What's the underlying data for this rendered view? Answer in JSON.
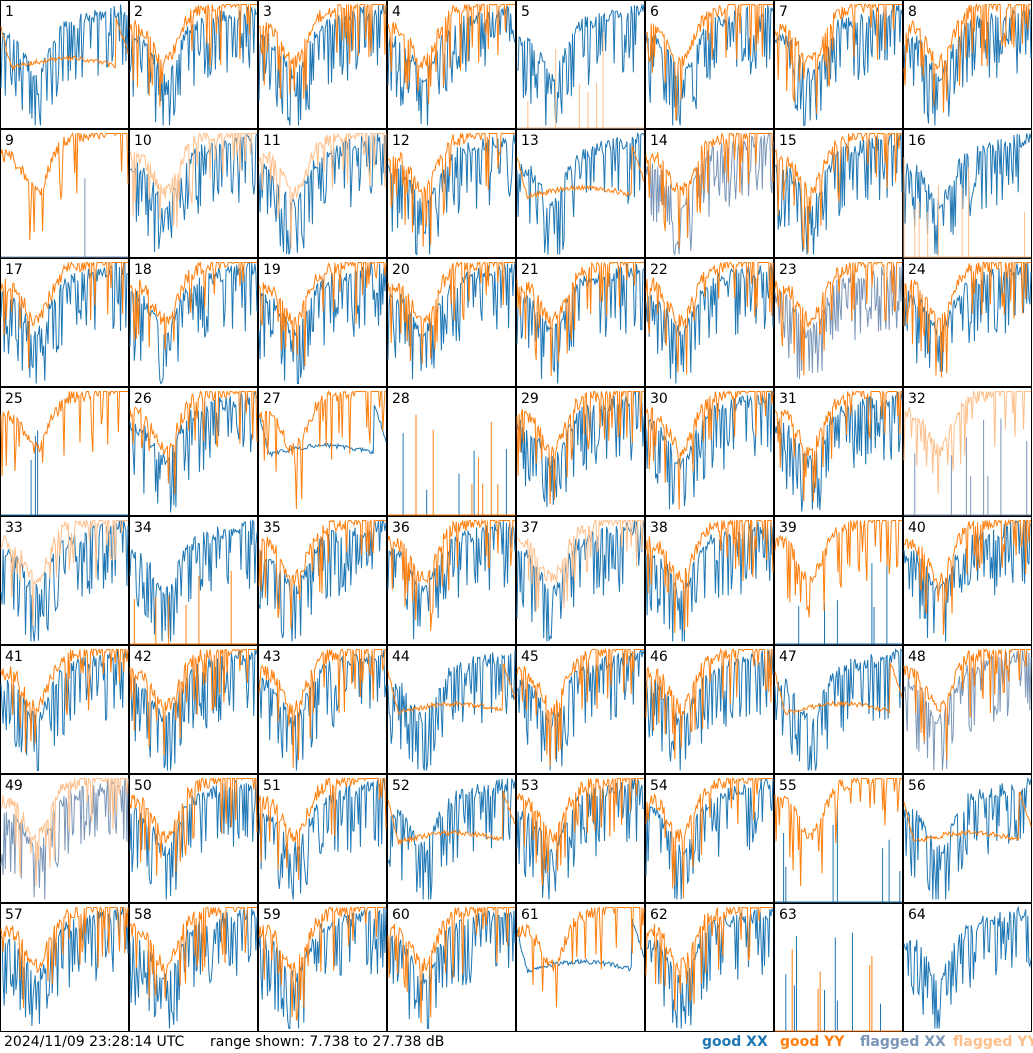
{
  "footer": {
    "timestamp": "2024/11/09 23:28:14 UTC",
    "range": "range shown: 7.738 to 27.738 dB"
  },
  "legend": [
    {
      "word": "good",
      "pol": "XX",
      "color": "#1f77b4"
    },
    {
      "word": "good",
      "pol": "YY",
      "color": "#ff7f0e"
    },
    {
      "word": "flagged",
      "pol": "XX",
      "color": "#7a96b8"
    },
    {
      "word": "flagged",
      "pol": "YY",
      "color": "#ffbf8a"
    }
  ],
  "chart_data": {
    "type": "line",
    "title": "",
    "ylim": [
      7.738,
      27.738
    ],
    "y_unit": "dB",
    "grid_layout": "8 x 8",
    "panels": [
      {
        "label": "1",
        "XX": "good",
        "YY": "good",
        "yy_style": "flat"
      },
      {
        "label": "2",
        "XX": "good",
        "YY": "good"
      },
      {
        "label": "3",
        "XX": "good",
        "YY": "good"
      },
      {
        "label": "4",
        "XX": "good",
        "YY": "good"
      },
      {
        "label": "5",
        "XX": "good",
        "YY": "flagged",
        "yy_style": "dead"
      },
      {
        "label": "6",
        "XX": "good",
        "YY": "good"
      },
      {
        "label": "7",
        "XX": "good",
        "YY": "good"
      },
      {
        "label": "8",
        "XX": "good",
        "YY": "good"
      },
      {
        "label": "9",
        "XX": "flagged",
        "YY": "good",
        "xx_style": "dead"
      },
      {
        "label": "10",
        "XX": "good",
        "YY": "flagged"
      },
      {
        "label": "11",
        "XX": "good",
        "YY": "flagged"
      },
      {
        "label": "12",
        "XX": "good",
        "YY": "good"
      },
      {
        "label": "13",
        "XX": "good",
        "YY": "good",
        "yy_style": "flat"
      },
      {
        "label": "14",
        "XX": "flagged",
        "YY": "good"
      },
      {
        "label": "15",
        "XX": "good",
        "YY": "good"
      },
      {
        "label": "16",
        "XX": "good",
        "YY": "flagged",
        "yy_style": "dead"
      },
      {
        "label": "17",
        "XX": "good",
        "YY": "good"
      },
      {
        "label": "18",
        "XX": "good",
        "YY": "good"
      },
      {
        "label": "19",
        "XX": "good",
        "YY": "good"
      },
      {
        "label": "20",
        "XX": "good",
        "YY": "good"
      },
      {
        "label": "21",
        "XX": "good",
        "YY": "good"
      },
      {
        "label": "22",
        "XX": "good",
        "YY": "good"
      },
      {
        "label": "23",
        "XX": "flagged",
        "YY": "good"
      },
      {
        "label": "24",
        "XX": "good",
        "YY": "good"
      },
      {
        "label": "25",
        "XX": "good",
        "YY": "good",
        "xx_style": "dead"
      },
      {
        "label": "26",
        "XX": "good",
        "YY": "good"
      },
      {
        "label": "27",
        "XX": "good",
        "YY": "good",
        "xx_style": "flat"
      },
      {
        "label": "28",
        "XX": "good",
        "YY": "good",
        "xx_style": "dead",
        "yy_style": "dead"
      },
      {
        "label": "29",
        "XX": "good",
        "YY": "good"
      },
      {
        "label": "30",
        "XX": "good",
        "YY": "good"
      },
      {
        "label": "31",
        "XX": "good",
        "YY": "good"
      },
      {
        "label": "32",
        "XX": "flagged",
        "YY": "flagged",
        "xx_style": "dead"
      },
      {
        "label": "33",
        "XX": "good",
        "YY": "flagged"
      },
      {
        "label": "34",
        "XX": "good",
        "YY": "good",
        "yy_style": "dead"
      },
      {
        "label": "35",
        "XX": "good",
        "YY": "good"
      },
      {
        "label": "36",
        "XX": "good",
        "YY": "good"
      },
      {
        "label": "37",
        "XX": "good",
        "YY": "flagged"
      },
      {
        "label": "38",
        "XX": "good",
        "YY": "good"
      },
      {
        "label": "39",
        "XX": "good",
        "YY": "good",
        "xx_style": "dead"
      },
      {
        "label": "40",
        "XX": "good",
        "YY": "good"
      },
      {
        "label": "41",
        "XX": "good",
        "YY": "good"
      },
      {
        "label": "42",
        "XX": "good",
        "YY": "good"
      },
      {
        "label": "43",
        "XX": "good",
        "YY": "good"
      },
      {
        "label": "44",
        "XX": "good",
        "YY": "good",
        "yy_style": "flat"
      },
      {
        "label": "45",
        "XX": "good",
        "YY": "good"
      },
      {
        "label": "46",
        "XX": "good",
        "YY": "good"
      },
      {
        "label": "47",
        "XX": "good",
        "YY": "good",
        "yy_style": "flat"
      },
      {
        "label": "48",
        "XX": "flagged",
        "YY": "good"
      },
      {
        "label": "49",
        "XX": "flagged",
        "YY": "flagged"
      },
      {
        "label": "50",
        "XX": "good",
        "YY": "good"
      },
      {
        "label": "51",
        "XX": "good",
        "YY": "good"
      },
      {
        "label": "52",
        "XX": "good",
        "YY": "good",
        "yy_style": "flat"
      },
      {
        "label": "53",
        "XX": "good",
        "YY": "good"
      },
      {
        "label": "54",
        "XX": "good",
        "YY": "good"
      },
      {
        "label": "55",
        "XX": "good",
        "YY": "good",
        "xx_style": "dead"
      },
      {
        "label": "56",
        "XX": "good",
        "YY": "good",
        "yy_style": "flat"
      },
      {
        "label": "57",
        "XX": "good",
        "YY": "good"
      },
      {
        "label": "58",
        "XX": "good",
        "YY": "good"
      },
      {
        "label": "59",
        "XX": "good",
        "YY": "good"
      },
      {
        "label": "60",
        "XX": "good",
        "YY": "good"
      },
      {
        "label": "61",
        "XX": "good",
        "YY": "good",
        "xx_style": "flat"
      },
      {
        "label": "62",
        "XX": "good",
        "YY": "good"
      },
      {
        "label": "63",
        "XX": "good",
        "YY": "good",
        "xx_style": "dead",
        "yy_style": "dead"
      },
      {
        "label": "64",
        "XX": "good",
        "YY": "good",
        "yy_style": "none"
      }
    ]
  }
}
